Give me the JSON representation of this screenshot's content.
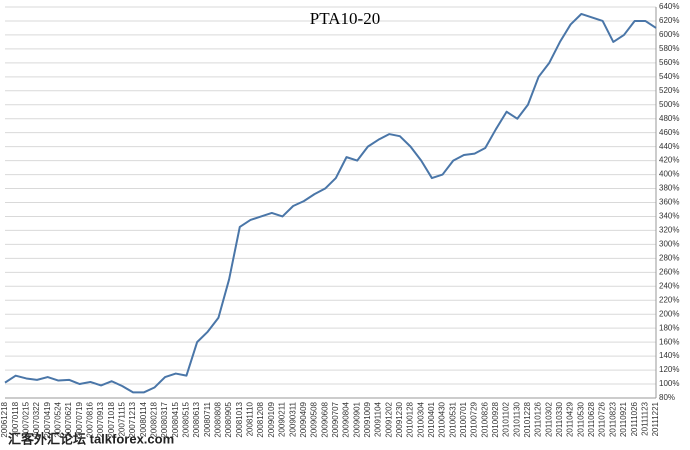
{
  "chart_data": {
    "type": "line",
    "title": "PTA10-20",
    "categories": [
      "20061218",
      "20070118",
      "20070215",
      "20070322",
      "20070419",
      "20070524",
      "20070621",
      "20070719",
      "20070816",
      "20070913",
      "20071018",
      "20071115",
      "20071213",
      "20080114",
      "20080218",
      "20080317",
      "20080415",
      "20080515",
      "20080613",
      "20080711",
      "20080808",
      "20080905",
      "20081013",
      "20081110",
      "20081208",
      "20090109",
      "20090211",
      "20090311",
      "20090409",
      "20090508",
      "20090608",
      "20090707",
      "20090804",
      "20090901",
      "20091009",
      "20091104",
      "20091202",
      "20091230",
      "20100128",
      "20100304",
      "20100401",
      "20100430",
      "20100531",
      "20100701",
      "20100729",
      "20100826",
      "20100928",
      "20101102",
      "20101130",
      "20101228",
      "20110126",
      "20110302",
      "20110330",
      "20110429",
      "20110530",
      "20110628",
      "20110726",
      "20110823",
      "20110921",
      "20111026",
      "20111123",
      "20111221"
    ],
    "values": [
      102,
      112,
      108,
      106,
      110,
      105,
      106,
      100,
      103,
      98,
      104,
      97,
      88,
      88,
      95,
      110,
      115,
      112,
      160,
      175,
      195,
      250,
      325,
      335,
      340,
      345,
      340,
      355,
      362,
      372,
      380,
      395,
      425,
      420,
      440,
      450,
      458,
      455,
      440,
      420,
      395,
      400,
      420,
      428,
      430,
      438,
      465,
      490,
      480,
      500,
      540,
      560,
      590,
      615,
      630,
      625,
      620,
      590,
      600,
      620,
      620,
      610
    ],
    "color": "#4a76a8",
    "ylim": [
      80,
      640
    ],
    "yticks": [
      {
        "value": 80,
        "label": "80%"
      },
      {
        "value": 100,
        "label": "100%"
      },
      {
        "value": 120,
        "label": "120%"
      },
      {
        "value": 140,
        "label": "140%"
      },
      {
        "value": 160,
        "label": "160%"
      },
      {
        "value": 180,
        "label": "180%"
      },
      {
        "value": 200,
        "label": "200%"
      },
      {
        "value": 220,
        "label": "220%"
      },
      {
        "value": 240,
        "label": "240%"
      },
      {
        "value": 260,
        "label": "260%"
      },
      {
        "value": 280,
        "label": "280%"
      },
      {
        "value": 300,
        "label": "300%"
      },
      {
        "value": 320,
        "label": "320%"
      },
      {
        "value": 340,
        "label": "340%"
      },
      {
        "value": 360,
        "label": "360%"
      },
      {
        "value": 380,
        "label": "380%"
      },
      {
        "value": 400,
        "label": "400%"
      },
      {
        "value": 420,
        "label": "420%"
      },
      {
        "value": 440,
        "label": "440%"
      },
      {
        "value": 460,
        "label": "460%"
      },
      {
        "value": 480,
        "label": "480%"
      },
      {
        "value": 500,
        "label": "500%"
      },
      {
        "value": 520,
        "label": "520%"
      },
      {
        "value": 540,
        "label": "540%"
      },
      {
        "value": 560,
        "label": "560%"
      },
      {
        "value": 580,
        "label": "580%"
      },
      {
        "value": 600,
        "label": "600%"
      },
      {
        "value": 620,
        "label": "620%"
      },
      {
        "value": 640,
        "label": "640%"
      }
    ],
    "grid": true,
    "watermark": "汇客外汇论坛 talkforex.com"
  }
}
